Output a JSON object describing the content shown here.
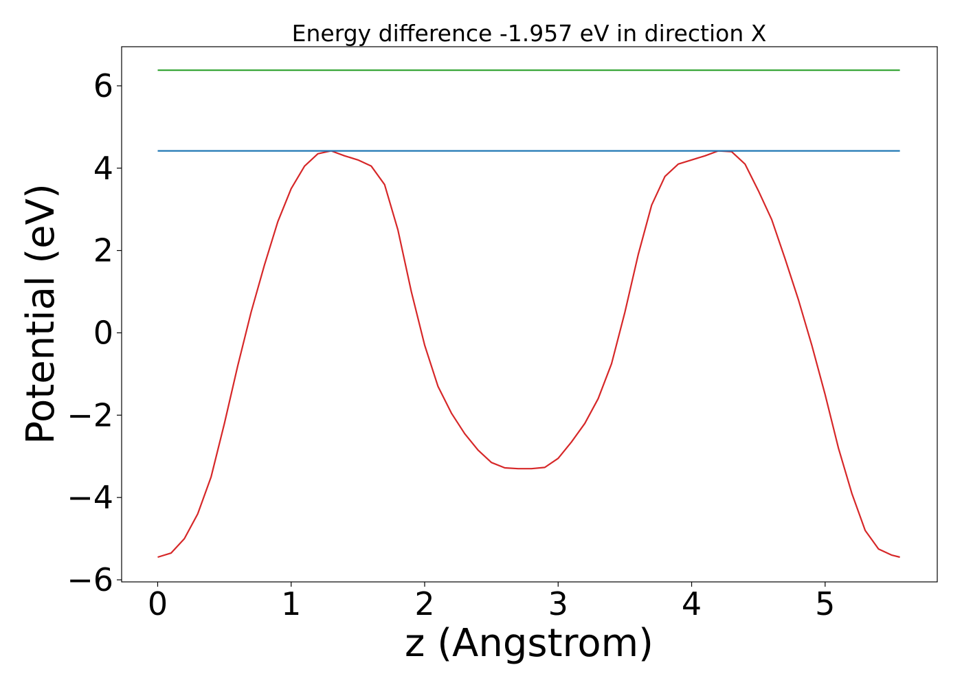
{
  "chart_data": {
    "type": "line",
    "title": "Energy difference -1.957 eV in direction X",
    "xlabel": "z (Angstrom)",
    "ylabel": "Potential (eV)",
    "xlim": [
      -0.27,
      5.84
    ],
    "ylim": [
      -6.05,
      6.95
    ],
    "xticks": [
      0,
      1,
      2,
      3,
      4,
      5
    ],
    "xtick_labels": [
      "0",
      "1",
      "2",
      "3",
      "4",
      "5"
    ],
    "yticks": [
      -6,
      -4,
      -2,
      0,
      2,
      4,
      6
    ],
    "ytick_labels": [
      "−6",
      "−4",
      "−2",
      "0",
      "2",
      "4",
      "6"
    ],
    "grid": false,
    "series": [
      {
        "color": "#d62728",
        "x": [
          0.0,
          0.1,
          0.2,
          0.3,
          0.4,
          0.5,
          0.6,
          0.7,
          0.8,
          0.9,
          1.0,
          1.1,
          1.2,
          1.3,
          1.4,
          1.5,
          1.6,
          1.7,
          1.8,
          1.9,
          2.0,
          2.1,
          2.2,
          2.3,
          2.4,
          2.5,
          2.6,
          2.7,
          2.8,
          2.9,
          3.0,
          3.1,
          3.2,
          3.3,
          3.4,
          3.5,
          3.6,
          3.7,
          3.8,
          3.9,
          4.0,
          4.1,
          4.2,
          4.3,
          4.4,
          4.5,
          4.6,
          4.7,
          4.8,
          4.9,
          5.0,
          5.1,
          5.2,
          5.3,
          5.4,
          5.5,
          5.56
        ],
        "y": [
          -5.45,
          -5.35,
          -5.0,
          -4.4,
          -3.5,
          -2.2,
          -0.8,
          0.5,
          1.65,
          2.7,
          3.5,
          4.05,
          4.35,
          4.42,
          4.3,
          4.2,
          4.05,
          3.6,
          2.5,
          1.0,
          -0.3,
          -1.3,
          -1.95,
          -2.45,
          -2.85,
          -3.15,
          -3.28,
          -3.3,
          -3.3,
          -3.27,
          -3.05,
          -2.65,
          -2.2,
          -1.6,
          -0.75,
          0.5,
          1.9,
          3.1,
          3.8,
          4.1,
          4.2,
          4.3,
          4.42,
          4.4,
          4.1,
          3.45,
          2.75,
          1.8,
          0.8,
          -0.3,
          -1.5,
          -2.8,
          -3.9,
          -4.8,
          -5.25,
          -5.4,
          -5.45
        ]
      },
      {
        "color": "#1f77b4",
        "x": [
          0.0,
          5.56
        ],
        "y": [
          4.42,
          4.42
        ]
      },
      {
        "color": "#2ca02c",
        "x": [
          0.0,
          5.56
        ],
        "y": [
          6.38,
          6.38
        ]
      }
    ]
  }
}
